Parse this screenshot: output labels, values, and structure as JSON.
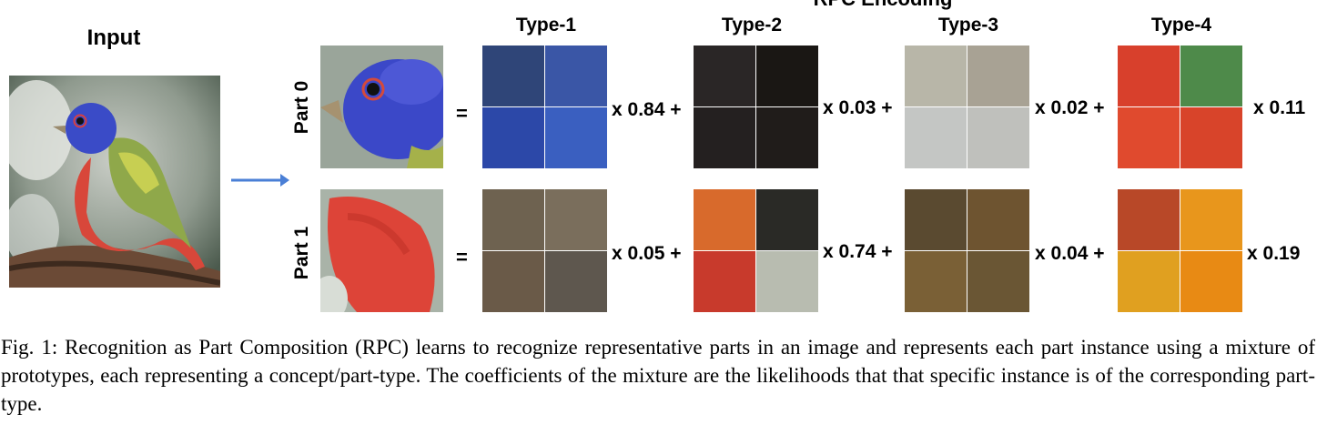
{
  "figure": {
    "encoding_title": "RPC Encoding",
    "input_title": "Input",
    "type_labels": [
      "Type-1",
      "Type-2",
      "Type-3",
      "Type-4"
    ],
    "equals": "=",
    "parts": [
      {
        "label": "Part 0",
        "coefficients": [
          "x 0.84 +",
          "x 0.03 +",
          "x 0.02 +",
          "x 0.11"
        ]
      },
      {
        "label": "Part 1",
        "coefficients": [
          "x 0.05 +",
          "x 0.74 +",
          "x 0.04 +",
          "x 0.19"
        ]
      }
    ],
    "arrow_color": "#4a7fd6"
  },
  "caption": "Fig. 1: Recognition as Part Composition (RPC) learns to recognize representative parts in an image and represents each part instance using a mixture of prototypes, each representing a concept/part-type. The coefficients of the mixture are the likelihoods that that specific instance is of the corresponding part-type."
}
